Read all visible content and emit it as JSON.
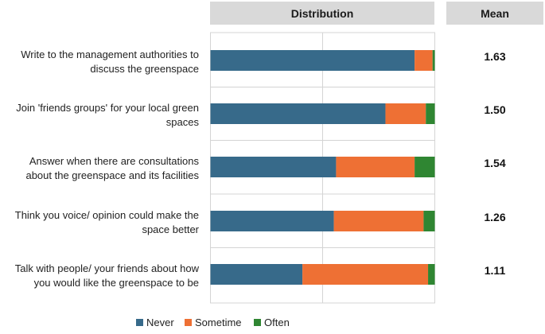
{
  "headers": {
    "distribution": "Distribution",
    "mean": "Mean"
  },
  "chart_data": {
    "type": "bar",
    "stacked": true,
    "orientation": "horizontal",
    "categories": [
      [
        "Write to the management authorities to",
        "discuss the greenspace"
      ],
      [
        "Join 'friends groups' for your local green",
        "spaces"
      ],
      [
        "Answer when there are consultations",
        "about the greenspace and its facilities"
      ],
      [
        "Think you voice/ opinion could make the",
        "space better"
      ],
      [
        "Talk with people/ your friends about how",
        "you would like the greenspace to be"
      ]
    ],
    "series": [
      {
        "name": "Never",
        "color": "#376a8a",
        "values": [
          0.91,
          0.78,
          0.56,
          0.55,
          0.41
        ]
      },
      {
        "name": "Sometime",
        "color": "#ee7034",
        "values": [
          0.08,
          0.18,
          0.35,
          0.4,
          0.56
        ]
      },
      {
        "name": "Often",
        "color": "#2f8632",
        "values": [
          0.01,
          0.04,
          0.09,
          0.05,
          0.03
        ]
      }
    ],
    "means": [
      "1.63",
      "1.50",
      "1.54",
      "1.26",
      "1.11"
    ],
    "xlim": [
      0,
      1
    ],
    "grid": true,
    "legend_position": "bottom"
  }
}
